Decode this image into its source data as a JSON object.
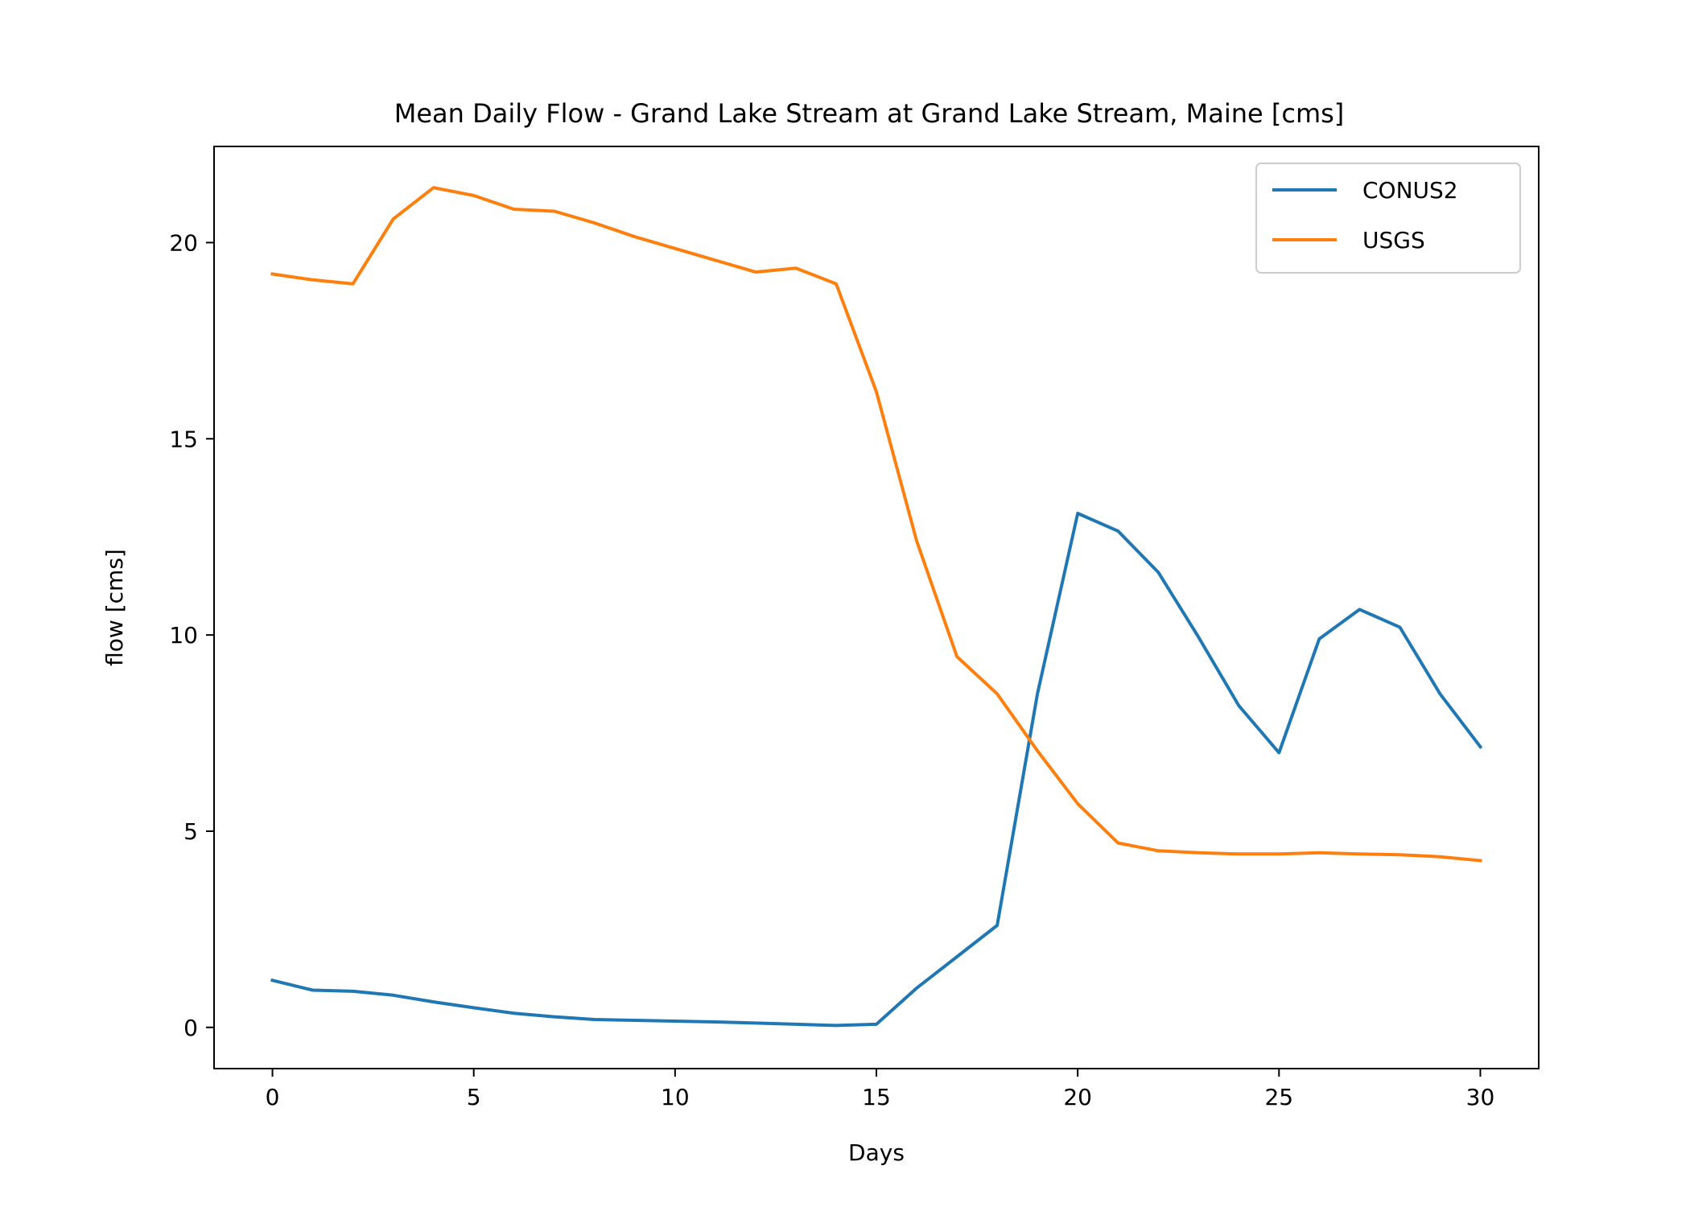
{
  "chart_data": {
    "type": "line",
    "title": "Mean Daily Flow - Grand Lake Stream at Grand Lake Stream, Maine [cms]",
    "xlabel": "Days",
    "ylabel": "flow [cms]",
    "xlim": [
      -1.45,
      31.45
    ],
    "ylim": [
      -1.05,
      22.45
    ],
    "xticks": [
      0,
      5,
      10,
      15,
      20,
      25,
      30
    ],
    "yticks": [
      0,
      5,
      10,
      15,
      20
    ],
    "grid": false,
    "legend_position": "top-right",
    "x": [
      0,
      1,
      2,
      3,
      4,
      5,
      6,
      7,
      8,
      9,
      10,
      11,
      12,
      13,
      14,
      15,
      16,
      17,
      18,
      19,
      20,
      21,
      22,
      23,
      24,
      25,
      26,
      27,
      28,
      29,
      30
    ],
    "series": [
      {
        "name": "CONUS2",
        "color": "#1f77b4",
        "values": [
          1.2,
          0.95,
          0.92,
          0.82,
          0.65,
          0.5,
          0.36,
          0.27,
          0.2,
          0.18,
          0.16,
          0.14,
          0.11,
          0.08,
          0.05,
          0.08,
          1.0,
          1.8,
          2.6,
          8.5,
          13.1,
          12.65,
          11.6,
          9.95,
          8.2,
          7.0,
          9.9,
          10.65,
          10.2,
          8.5,
          7.15
        ]
      },
      {
        "name": "USGS",
        "color": "#ff7f0e",
        "values": [
          19.2,
          19.05,
          18.95,
          20.6,
          21.4,
          21.2,
          20.85,
          20.8,
          20.5,
          20.15,
          19.85,
          19.55,
          19.25,
          19.35,
          18.95,
          16.2,
          12.4,
          9.45,
          8.5,
          7.05,
          5.7,
          4.7,
          4.5,
          4.45,
          4.42,
          4.42,
          4.45,
          4.42,
          4.4,
          4.35,
          4.25
        ]
      }
    ]
  }
}
